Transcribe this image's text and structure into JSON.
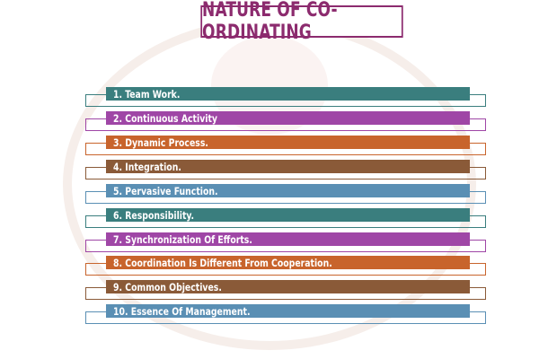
{
  "title": "NATURE OF CO-ORDINATING",
  "items": [
    {
      "label": "1. Team Work.",
      "color": "#3a7e7e"
    },
    {
      "label": "2. Continuous Activity",
      "color": "#9f46a6"
    },
    {
      "label": "3. Dynamic Process.",
      "color": "#c8642c"
    },
    {
      "label": "4. Integration.",
      "color": "#8a5a38"
    },
    {
      "label": "5. Pervasive Function.",
      "color": "#5a8fb4"
    },
    {
      "label": "6. Responsibility.",
      "color": "#3a7e7e"
    },
    {
      "label": "7. Synchronization Of Efforts.",
      "color": "#9f46a6"
    },
    {
      "label": "8. Coordination Is Different From Cooperation.",
      "color": "#c8642c"
    },
    {
      "label": "9. Common Objectives.",
      "color": "#8a5a38"
    },
    {
      "label": "10. Essence Of Management.",
      "color": "#5a8fb4"
    }
  ],
  "accent_color": "#8c2b6e"
}
